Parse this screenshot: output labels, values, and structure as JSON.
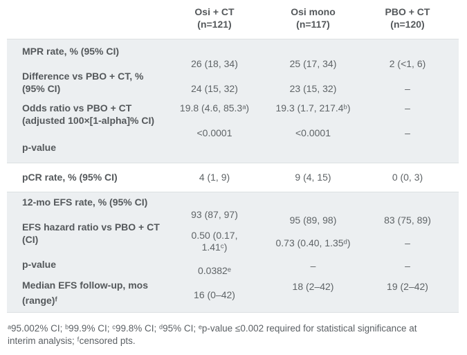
{
  "table": {
    "columns": [
      {
        "name": "Osi + CT",
        "n": "(n=121)"
      },
      {
        "name": "Osi mono",
        "n": "(n=117)"
      },
      {
        "name": "PBO + CT",
        "n": "(n=120)"
      }
    ],
    "rows": {
      "mpr": {
        "label": "MPR rate, % (95% CI)",
        "v1": "26 (18, 34)",
        "v2": "25 (17, 34)",
        "v3": "2 (<1, 6)"
      },
      "diff": {
        "label_line1": "Difference vs PBO + CT, %",
        "label_line2": "(95% CI)",
        "v1": "24 (15, 32)",
        "v2": "23 (15, 32)",
        "v3": "–"
      },
      "odds": {
        "label_line1": "Odds ratio vs PBO + CT",
        "label_line2": "(adjusted 100×[1-alpha]% CI)",
        "v1": "19.8 (4.6, 85.3ᵃ)",
        "v2": "19.3 (1.7, 217.4ᵇ)",
        "v3": "–"
      },
      "pvalue_mpr": {
        "label": "p-value",
        "v1": "<0.0001",
        "v2": "<0.0001",
        "v3": "–"
      },
      "pcr": {
        "label": "pCR rate, % (95% CI)",
        "v1": "4 (1, 9)",
        "v2": "9 (4, 15)",
        "v3": "0 (0, 3)"
      },
      "efs12": {
        "label": "12-mo EFS rate, % (95% CI)",
        "v1": "93 (87, 97)",
        "v2": "95 (89, 98)",
        "v3": "83 (75, 89)"
      },
      "efs_hr": {
        "label_line1": "EFS hazard ratio vs PBO + CT",
        "label_line2": "(CI)",
        "v1_line1": "0.50 (0.17,",
        "v1_line2": "1.41ᶜ)",
        "v2": "0.73 (0.40, 1.35ᵈ)",
        "v3": "–"
      },
      "pvalue_efs": {
        "label": "p-value",
        "v1": "0.0382ᵉ",
        "v2": "–",
        "v3": "–"
      },
      "efs_followup": {
        "label_line1": "Median EFS follow-up, mos",
        "label_line2": "(range)ᶠ",
        "v1": "16 (0–42)",
        "v2": "18 (2–42)",
        "v3": "19 (2–42)"
      }
    }
  },
  "footnote": "ᵃ95.002% CI; ᵇ99.9% CI; ᶜ99.8% CI; ᵈ95% CI; ᵉp-value ≤0.002 required for statistical significance at interim analysis; ᶠcensored pts.",
  "colors": {
    "section_shade": "#eceff1",
    "section_border": "#dce0e2",
    "label_text": "#54585b",
    "value_text": "#5e6366"
  }
}
